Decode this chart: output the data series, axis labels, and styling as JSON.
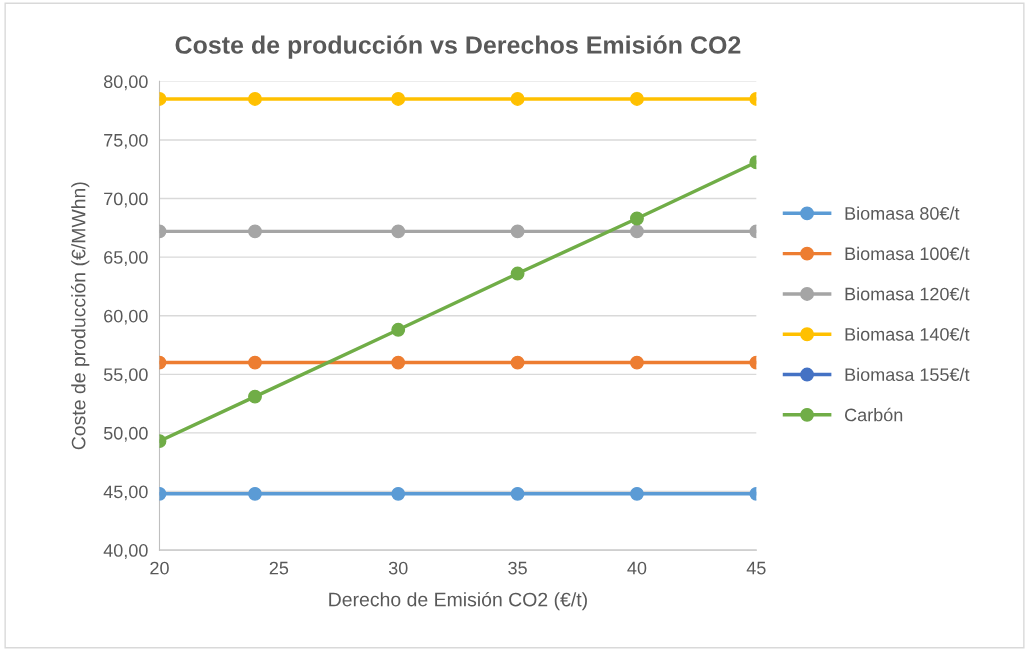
{
  "chart_data": {
    "type": "line",
    "title": "Coste de producción vs Derechos Emisión CO2",
    "xlabel": "Derecho de Emisión CO2 (€/t)",
    "ylabel": "Coste de producción (€/MWhn)",
    "x": [
      20,
      24,
      30,
      35,
      40,
      45
    ],
    "series": [
      {
        "name": "Biomasa 80€/t",
        "color": "#5b9bd5",
        "values": [
          44.8,
          44.8,
          44.8,
          44.8,
          44.8,
          44.8
        ]
      },
      {
        "name": "Biomasa 100€/t",
        "color": "#ed7d31",
        "values": [
          56.0,
          56.0,
          56.0,
          56.0,
          56.0,
          56.0
        ]
      },
      {
        "name": "Biomasa 120€/t",
        "color": "#a5a5a5",
        "values": [
          67.2,
          67.2,
          67.2,
          67.2,
          67.2,
          67.2
        ]
      },
      {
        "name": "Biomasa 140€/t",
        "color": "#ffc000",
        "values": [
          78.5,
          78.5,
          78.5,
          78.5,
          78.5,
          78.5
        ]
      },
      {
        "name": "Biomasa 155€/t",
        "color": "#4472c4",
        "values": [
          null,
          null,
          null,
          null,
          null,
          null
        ]
      },
      {
        "name": "Carbón",
        "color": "#70ad47",
        "values": [
          49.3,
          53.1,
          58.8,
          63.6,
          68.3,
          73.1
        ]
      }
    ],
    "xlim": [
      20,
      45
    ],
    "xticks": [
      20,
      25,
      30,
      35,
      40,
      45
    ],
    "ylim": [
      40,
      80
    ],
    "yticks": [
      {
        "value": 40,
        "label": "40,00"
      },
      {
        "value": 45,
        "label": "45,00"
      },
      {
        "value": 50,
        "label": "50,00"
      },
      {
        "value": 55,
        "label": "55,00"
      },
      {
        "value": 60,
        "label": "60,00"
      },
      {
        "value": 65,
        "label": "65,00"
      },
      {
        "value": 70,
        "label": "70,00"
      },
      {
        "value": 75,
        "label": "75,00"
      },
      {
        "value": 80,
        "label": "80,00"
      }
    ],
    "grid": "y",
    "legend": "right",
    "marker": "circle",
    "line_style": "solid"
  }
}
